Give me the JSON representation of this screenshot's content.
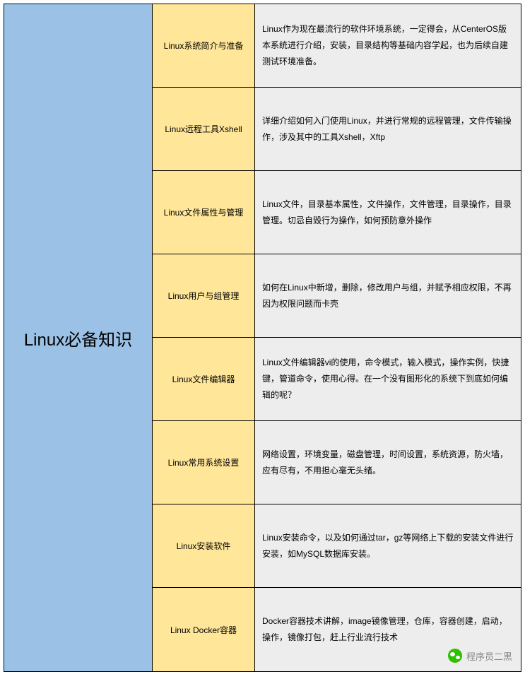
{
  "title": "Linux必备知识",
  "colors": {
    "left_bg": "#9bc2e6",
    "topic_bg": "#ffe699",
    "desc_bg": "#ededed",
    "border": "#000000",
    "text": "#000000"
  },
  "rows": [
    {
      "topic": "Linux系统简介与准备",
      "desc": "Linux作为现在最流行的软件环境系统，一定得会，从CenterOS版本系统进行介绍，安装，目录结构等基础内容学起，也为后续自建测试环境准备。"
    },
    {
      "topic": "Linux远程工具Xshell",
      "desc": "详细介绍如何入门使用Linux，并进行常规的远程管理，文件传输操作，涉及其中的工具Xshell，Xftp"
    },
    {
      "topic": "Linux文件属性与管理",
      "desc": "Linux文件，目录基本属性，文件操作，文件管理，目录操作，目录管理。切忌自毁行为操作，如何预防意外操作"
    },
    {
      "topic": "Linux用户与组管理",
      "desc": "如何在Linux中新增，删除，修改用户与组，并赋予相应权限，不再因为权限问题而卡壳"
    },
    {
      "topic": "Linux文件编辑器",
      "desc": "Linux文件编辑器vi的使用，命令模式，输入模式，操作实例，快捷键，管道命令，使用心得。在一个没有图形化的系统下到底如何编辑的呢？"
    },
    {
      "topic": "Linux常用系统设置",
      "desc": "网络设置，环境变量，磁盘管理，时间设置，系统资源，防火墙，应有尽有，不用担心毫无头绪。"
    },
    {
      "topic": "Linux安装软件",
      "desc": "Linux安装命令，以及如何通过tar，gz等网络上下载的安装文件进行安装，如MySQL数据库安装。"
    },
    {
      "topic": "Linux Docker容器",
      "desc": "Docker容器技术讲解，image镜像管理，仓库，容器创建，启动，操作，镜像打包，赶上行业流行技术"
    }
  ],
  "watermark": "程序员二黑"
}
